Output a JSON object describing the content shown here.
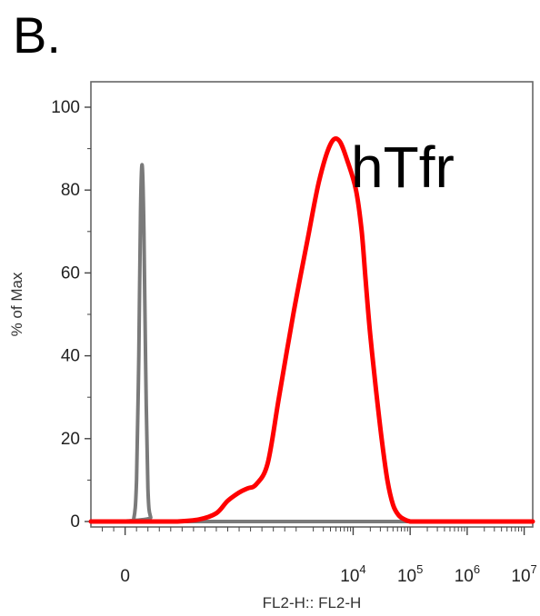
{
  "panel_label": "B.",
  "chart_data": {
    "type": "line",
    "annotation": "hTfr",
    "xlabel": "FL2-H:: FL2-H",
    "ylabel": "% of Max",
    "x_scale": "biexponential",
    "xlim": [
      -0.6,
      7.15
    ],
    "ylim": [
      0,
      105
    ],
    "x_ticks": [
      {
        "value": 0,
        "base": "0",
        "exp": ""
      },
      {
        "value": 4,
        "base": "10",
        "exp": "4"
      },
      {
        "value": 5,
        "base": "10",
        "exp": "5"
      },
      {
        "value": 6,
        "base": "10",
        "exp": "6"
      },
      {
        "value": 7,
        "base": "10",
        "exp": "7"
      }
    ],
    "y_ticks": [
      0,
      20,
      40,
      60,
      80,
      100
    ],
    "grid": false,
    "series": [
      {
        "color": "#7a7a7a",
        "x": [
          -0.6,
          0.05,
          0.15,
          0.2,
          0.24,
          0.27,
          0.3,
          0.33,
          0.36,
          0.4,
          0.45,
          0.55,
          7.15
        ],
        "y": [
          0,
          0,
          0.5,
          10,
          40,
          75,
          86,
          70,
          38,
          8,
          1,
          0,
          0
        ]
      },
      {
        "color": "#ff0000",
        "x": [
          -0.6,
          0.5,
          0.9,
          1.3,
          1.6,
          1.8,
          2.0,
          2.15,
          2.3,
          2.5,
          2.7,
          2.95,
          3.2,
          3.4,
          3.6,
          3.75,
          3.9,
          4.05,
          4.15,
          4.22,
          4.3,
          4.4,
          4.5,
          4.6,
          4.7,
          4.8,
          4.9,
          5.0,
          5.1,
          5.2,
          5.3,
          5.4,
          5.5,
          5.7,
          6.0,
          7.15
        ],
        "y": [
          0,
          0,
          0,
          0.5,
          2,
          5,
          7,
          8,
          9,
          14,
          30,
          50,
          68,
          82,
          91,
          92,
          87,
          80,
          70,
          58,
          45,
          32,
          20,
          10,
          4,
          1.5,
          0.5,
          0,
          0,
          0,
          0,
          0,
          0,
          0,
          0,
          0
        ]
      }
    ]
  }
}
